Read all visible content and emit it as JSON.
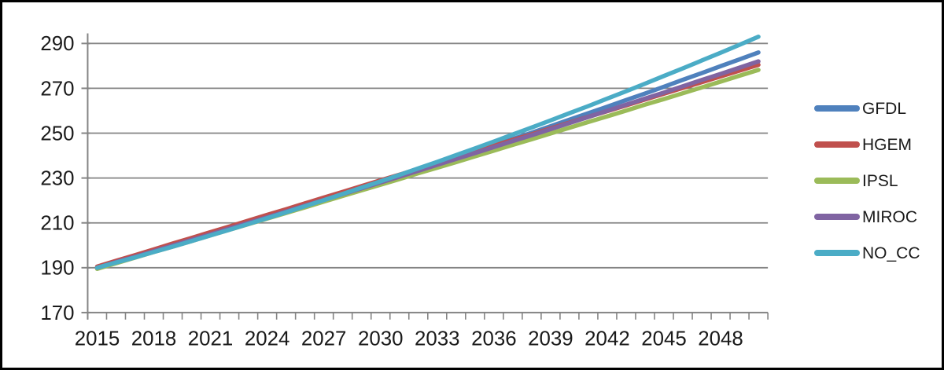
{
  "chart_data": {
    "type": "line",
    "title": "",
    "xlabel": "",
    "ylabel": "",
    "xlim": [
      2015,
      2050
    ],
    "ylim": [
      170,
      300
    ],
    "grid": true,
    "legend_position": "right",
    "gridline_color": "#848484",
    "axis_color": "#848484",
    "axis_text_color": "#1a1a1a",
    "x": [
      2015,
      2016,
      2017,
      2018,
      2019,
      2020,
      2021,
      2022,
      2023,
      2024,
      2025,
      2026,
      2027,
      2028,
      2029,
      2030,
      2031,
      2032,
      2033,
      2034,
      2035,
      2036,
      2037,
      2038,
      2039,
      2040,
      2041,
      2042,
      2043,
      2044,
      2045,
      2046,
      2047,
      2048,
      2049,
      2050
    ],
    "x_tick_labels": [
      "2015",
      "2018",
      "2021",
      "2024",
      "2027",
      "2030",
      "2033",
      "2036",
      "2039",
      "2042",
      "2045",
      "2048"
    ],
    "y_tick_labels": [
      "170",
      "190",
      "210",
      "230",
      "250",
      "270",
      "290"
    ],
    "series": [
      {
        "name": "GFDL",
        "color": "#4F81BD",
        "values": [
          190.0,
          192.4,
          194.8,
          197.2,
          199.7,
          202.1,
          204.6,
          207.1,
          209.7,
          212.2,
          214.8,
          217.4,
          220.0,
          222.7,
          225.3,
          228.0,
          230.7,
          233.4,
          236.2,
          239.0,
          241.7,
          244.5,
          247.4,
          250.2,
          253.1,
          256.0,
          258.9,
          261.8,
          264.8,
          267.7,
          270.7,
          273.8,
          276.8,
          279.9,
          282.9,
          286.0
        ]
      },
      {
        "name": "HGEM",
        "color": "#C0504D",
        "values": [
          190.5,
          193.1,
          195.6,
          198.2,
          200.8,
          203.3,
          205.9,
          208.4,
          211.0,
          213.6,
          216.1,
          218.7,
          221.3,
          223.8,
          226.4,
          229.0,
          231.5,
          234.1,
          236.7,
          239.2,
          241.8,
          244.4,
          247.0,
          249.5,
          252.1,
          254.7,
          257.3,
          259.8,
          262.4,
          265.0,
          267.6,
          270.2,
          272.7,
          275.3,
          277.9,
          280.5
        ]
      },
      {
        "name": "IPSL",
        "color": "#9BBB59",
        "values": [
          189.5,
          192.0,
          194.5,
          197.0,
          199.4,
          201.9,
          204.4,
          206.9,
          209.4,
          211.9,
          214.4,
          216.9,
          219.5,
          222.0,
          224.5,
          227.0,
          229.5,
          232.1,
          234.6,
          237.1,
          239.7,
          242.2,
          244.8,
          247.3,
          249.9,
          252.4,
          255.0,
          257.5,
          260.1,
          262.7,
          265.2,
          267.8,
          270.4,
          273.0,
          275.6,
          278.2
        ]
      },
      {
        "name": "MIROC",
        "color": "#8064A2",
        "values": [
          190.0,
          192.5,
          194.9,
          197.4,
          199.9,
          202.4,
          204.9,
          207.5,
          210.0,
          212.5,
          215.1,
          217.7,
          220.2,
          222.8,
          225.4,
          228.0,
          230.6,
          233.2,
          235.9,
          238.5,
          241.1,
          243.8,
          246.5,
          249.1,
          251.8,
          254.5,
          257.2,
          260.0,
          262.7,
          265.4,
          268.1,
          270.9,
          273.7,
          276.4,
          279.2,
          282.0
        ]
      },
      {
        "name": "NO_CC",
        "color": "#4BACC6",
        "values": [
          190.0,
          192.3,
          194.6,
          197.0,
          199.4,
          201.9,
          204.4,
          206.9,
          209.5,
          212.1,
          214.7,
          217.4,
          220.1,
          222.9,
          225.7,
          228.5,
          231.4,
          234.3,
          237.2,
          240.2,
          243.2,
          246.3,
          249.4,
          252.5,
          255.7,
          258.9,
          262.1,
          265.4,
          268.7,
          272.1,
          275.5,
          278.9,
          282.4,
          285.9,
          289.4,
          293.0
        ]
      }
    ]
  }
}
